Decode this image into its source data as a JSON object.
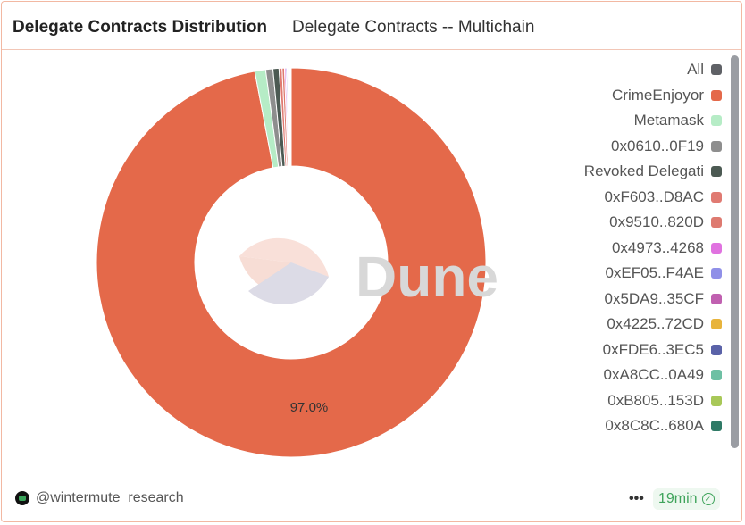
{
  "header": {
    "title": "Delegate Contracts Distribution",
    "subtitle": "Delegate Contracts -- Multichain"
  },
  "watermark": "Dune",
  "chart_data": {
    "type": "pie",
    "donut": true,
    "legend_placement": "right",
    "data_labels": [
      "97.0%"
    ],
    "legend": [
      {
        "name": "All",
        "color": "#5f6166"
      },
      {
        "name": "CrimeEnjoyor",
        "color": "#e4694a"
      },
      {
        "name": "Metamask",
        "color": "#b6ecc6"
      },
      {
        "name": "0x0610..0F19",
        "color": "#8e8e8e"
      },
      {
        "name": "Revoked Delegati",
        "color": "#4c5a53"
      },
      {
        "name": "0xF603..D8AC",
        "color": "#e07a72"
      },
      {
        "name": "0x9510..820D",
        "color": "#de7a70"
      },
      {
        "name": "0x4973..4268",
        "color": "#e072e0"
      },
      {
        "name": "0xEF05..F4AE",
        "color": "#9090e8"
      },
      {
        "name": "0x5DA9..35CF",
        "color": "#c060b0"
      },
      {
        "name": "0x4225..72CD",
        "color": "#e8b43c"
      },
      {
        "name": "0xFDE6..3EC5",
        "color": "#5a62a8"
      },
      {
        "name": "0xA8CC..0A49",
        "color": "#6ec0a4"
      },
      {
        "name": "0xB805..153D",
        "color": "#a8c858"
      },
      {
        "name": "0x8C8C..680A",
        "color": "#2f7a66"
      }
    ],
    "slices": [
      {
        "name": "CrimeEnjoyor",
        "value": 97.0
      },
      {
        "name": "Metamask",
        "value": 0.9
      },
      {
        "name": "0x0610..0F19",
        "value": 0.6
      },
      {
        "name": "Revoked Delegati",
        "value": 0.5
      },
      {
        "name": "0xF603..D8AC",
        "value": 0.25
      },
      {
        "name": "0x9510..820D",
        "value": 0.2
      },
      {
        "name": "0x4973..4268",
        "value": 0.12
      },
      {
        "name": "0xEF05..F4AE",
        "value": 0.1
      },
      {
        "name": "0x5DA9..35CF",
        "value": 0.08
      },
      {
        "name": "0x4225..72CD",
        "value": 0.07
      },
      {
        "name": "0xFDE6..3EC5",
        "value": 0.06
      },
      {
        "name": "0xA8CC..0A49",
        "value": 0.05
      },
      {
        "name": "0xB805..153D",
        "value": 0.04
      },
      {
        "name": "0x8C8C..680A",
        "value": 0.03
      }
    ]
  },
  "footer": {
    "author": "@wintermute_research",
    "more": "•••",
    "refresh": "19min"
  }
}
